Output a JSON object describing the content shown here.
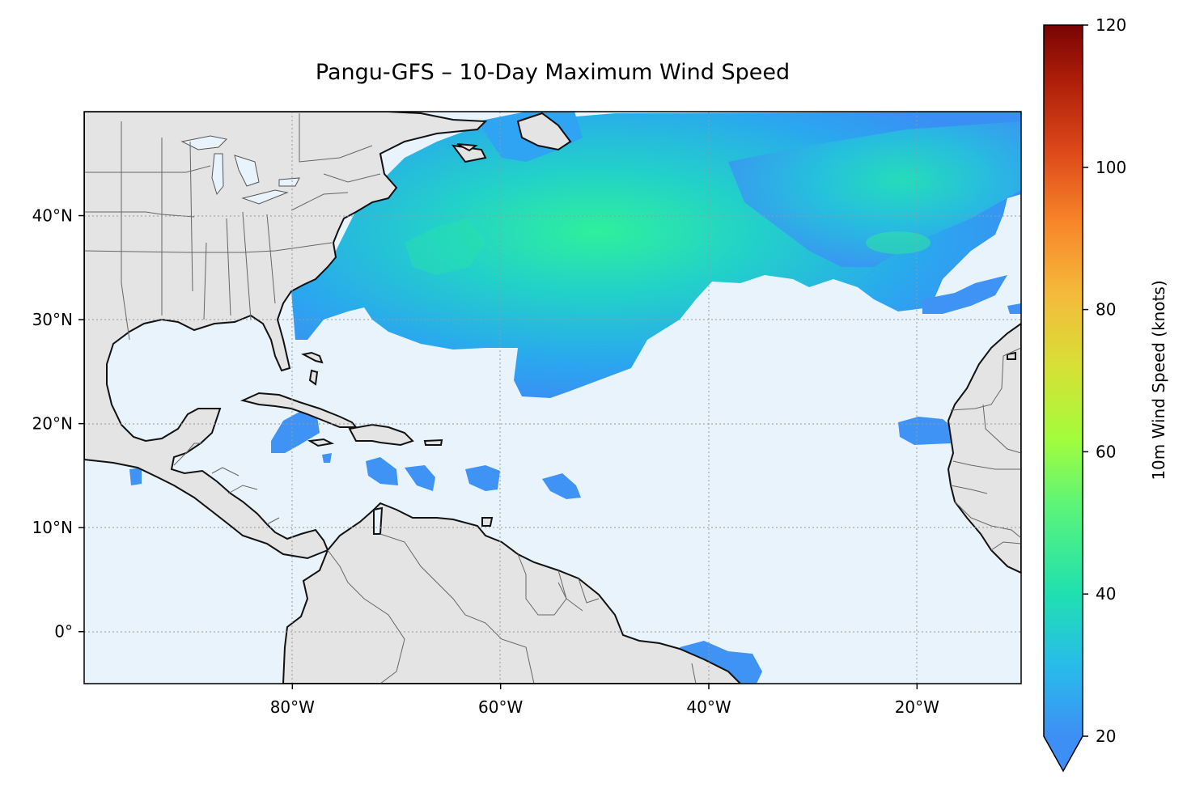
{
  "title": "Pangu-GFS – 10-Day Maximum Wind Speed",
  "map": {
    "extent": {
      "lon_min": -100,
      "lon_max": -10,
      "lat_min": -5,
      "lat_max": 50
    },
    "lon_ticks": [
      {
        "value": -80,
        "label": "80°W"
      },
      {
        "value": -60,
        "label": "60°W"
      },
      {
        "value": -40,
        "label": "40°W"
      },
      {
        "value": -20,
        "label": "20°W"
      }
    ],
    "lat_ticks": [
      {
        "value": 40,
        "label": "40°N"
      },
      {
        "value": 30,
        "label": "30°N"
      },
      {
        "value": 20,
        "label": "20°N"
      },
      {
        "value": 10,
        "label": "10°N"
      },
      {
        "value": 0,
        "label": "0°"
      }
    ],
    "ocean_color": "#e8f3fc",
    "land_color": "#e4e4e4",
    "gridlines": true
  },
  "colorbar": {
    "label": "10m Wind Speed (knots)",
    "min": 20,
    "max": 120,
    "extend": "min",
    "ticks": [
      {
        "value": 120,
        "label": "120"
      },
      {
        "value": 100,
        "label": "100"
      },
      {
        "value": 80,
        "label": "80"
      },
      {
        "value": 60,
        "label": "60"
      },
      {
        "value": 40,
        "label": "40"
      },
      {
        "value": 20,
        "label": "20"
      }
    ],
    "colormap": "turbo",
    "colors": [
      "#3e8ff5",
      "#28bcea",
      "#1fe0b0",
      "#86fb4e",
      "#d3e134",
      "#f4bb3b",
      "#f67a26",
      "#d9431a",
      "#a81c09",
      "#7a0403"
    ]
  },
  "wind_field": {
    "description_values_knots": "max approx 38 knots over central/north Atlantic",
    "peak_speed_knots": 38
  }
}
